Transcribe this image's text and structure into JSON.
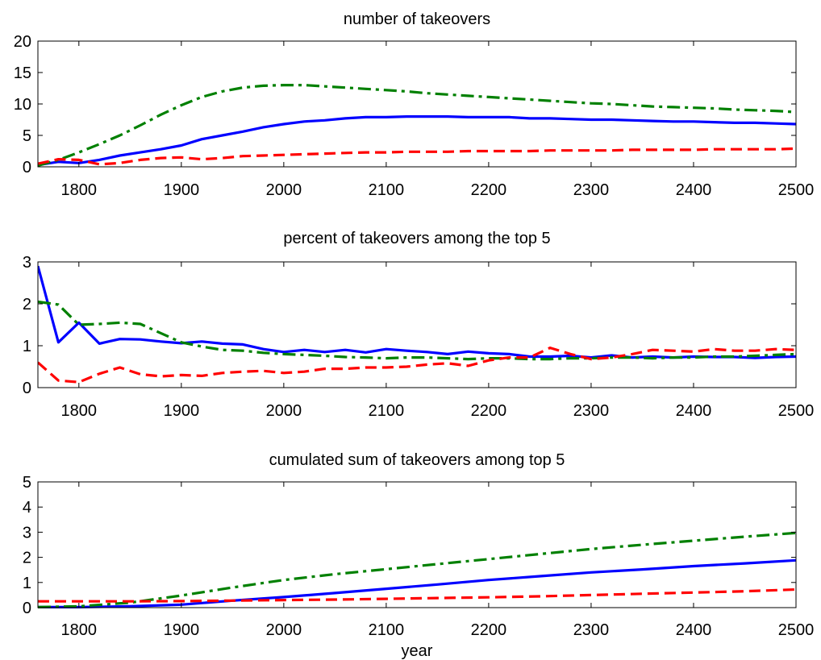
{
  "chart_data": [
    {
      "type": "line",
      "title": "number of takeovers",
      "xlabel": "",
      "ylabel": "",
      "xlim": [
        1760,
        2500
      ],
      "ylim": [
        0,
        20
      ],
      "xticks": [
        "1800",
        "1900",
        "2000",
        "2100",
        "2200",
        "2300",
        "2400",
        "2500"
      ],
      "yticks": [
        "0",
        "5",
        "10",
        "15",
        "20"
      ],
      "series": [
        {
          "color": "#0000ff",
          "style": "solid",
          "x": [
            1760,
            1780,
            1800,
            1820,
            1840,
            1860,
            1880,
            1900,
            1920,
            1940,
            1960,
            1980,
            2000,
            2020,
            2040,
            2060,
            2080,
            2100,
            2120,
            2140,
            2160,
            2180,
            2200,
            2220,
            2240,
            2260,
            2280,
            2300,
            2320,
            2340,
            2360,
            2380,
            2400,
            2420,
            2440,
            2460,
            2480,
            2500
          ],
          "y": [
            0.3,
            0.8,
            0.6,
            1.1,
            1.8,
            2.3,
            2.8,
            3.4,
            4.4,
            5.0,
            5.6,
            6.3,
            6.8,
            7.2,
            7.4,
            7.7,
            7.9,
            7.9,
            8.0,
            8.0,
            8.0,
            7.9,
            7.9,
            7.9,
            7.7,
            7.7,
            7.6,
            7.5,
            7.5,
            7.4,
            7.3,
            7.2,
            7.2,
            7.1,
            7.0,
            7.0,
            6.9,
            6.8
          ]
        },
        {
          "color": "#008000",
          "style": "dashdot",
          "x": [
            1760,
            1780,
            1800,
            1820,
            1840,
            1860,
            1880,
            1900,
            1920,
            1940,
            1960,
            1980,
            2000,
            2020,
            2040,
            2060,
            2080,
            2100,
            2120,
            2140,
            2160,
            2180,
            2200,
            2220,
            2240,
            2260,
            2280,
            2300,
            2320,
            2340,
            2360,
            2380,
            2400,
            2420,
            2440,
            2460,
            2480,
            2500
          ],
          "y": [
            0.2,
            1.1,
            2.3,
            3.6,
            5.0,
            6.6,
            8.3,
            9.8,
            11.1,
            12.0,
            12.6,
            12.9,
            13.0,
            13.0,
            12.8,
            12.6,
            12.4,
            12.2,
            12.0,
            11.7,
            11.5,
            11.3,
            11.1,
            10.9,
            10.7,
            10.5,
            10.3,
            10.1,
            10.0,
            9.8,
            9.6,
            9.5,
            9.4,
            9.3,
            9.1,
            9.0,
            8.9,
            8.7
          ]
        },
        {
          "color": "#ff0000",
          "style": "dashed",
          "x": [
            1760,
            1780,
            1800,
            1820,
            1840,
            1860,
            1880,
            1900,
            1920,
            1940,
            1960,
            1980,
            2000,
            2020,
            2040,
            2060,
            2080,
            2100,
            2120,
            2140,
            2160,
            2180,
            2200,
            2220,
            2240,
            2260,
            2280,
            2300,
            2320,
            2340,
            2360,
            2380,
            2400,
            2420,
            2440,
            2460,
            2480,
            2500
          ],
          "y": [
            0.5,
            1.2,
            1.1,
            0.4,
            0.6,
            1.1,
            1.4,
            1.5,
            1.2,
            1.4,
            1.7,
            1.8,
            1.9,
            2.0,
            2.1,
            2.2,
            2.3,
            2.3,
            2.4,
            2.4,
            2.4,
            2.5,
            2.5,
            2.5,
            2.5,
            2.6,
            2.6,
            2.6,
            2.6,
            2.7,
            2.7,
            2.7,
            2.7,
            2.8,
            2.8,
            2.8,
            2.8,
            2.9
          ]
        }
      ]
    },
    {
      "type": "line",
      "title": "percent of takeovers among the top 5",
      "xlabel": "",
      "ylabel": "",
      "xlim": [
        1760,
        2500
      ],
      "ylim": [
        0,
        3
      ],
      "xticks": [
        "1800",
        "1900",
        "2000",
        "2100",
        "2200",
        "2300",
        "2400",
        "2500"
      ],
      "yticks": [
        "0",
        "1",
        "2",
        "3"
      ],
      "series": [
        {
          "color": "#0000ff",
          "style": "solid",
          "x": [
            1760,
            1780,
            1800,
            1820,
            1840,
            1860,
            1880,
            1900,
            1920,
            1940,
            1960,
            1980,
            2000,
            2020,
            2040,
            2060,
            2080,
            2100,
            2120,
            2140,
            2160,
            2180,
            2200,
            2220,
            2240,
            2260,
            2280,
            2300,
            2320,
            2340,
            2360,
            2380,
            2400,
            2420,
            2440,
            2460,
            2480,
            2500
          ],
          "y": [
            2.9,
            1.08,
            1.55,
            1.05,
            1.16,
            1.15,
            1.1,
            1.06,
            1.1,
            1.05,
            1.03,
            0.92,
            0.85,
            0.9,
            0.85,
            0.9,
            0.84,
            0.92,
            0.88,
            0.85,
            0.8,
            0.86,
            0.82,
            0.8,
            0.74,
            0.74,
            0.76,
            0.72,
            0.77,
            0.72,
            0.74,
            0.72,
            0.74,
            0.73,
            0.73,
            0.71,
            0.73,
            0.74
          ]
        },
        {
          "color": "#008000",
          "style": "dashdot",
          "x": [
            1760,
            1780,
            1800,
            1820,
            1840,
            1860,
            1880,
            1900,
            1920,
            1940,
            1960,
            1980,
            2000,
            2020,
            2040,
            2060,
            2080,
            2100,
            2120,
            2140,
            2160,
            2180,
            2200,
            2220,
            2240,
            2260,
            2280,
            2300,
            2320,
            2340,
            2360,
            2380,
            2400,
            2420,
            2440,
            2460,
            2480,
            2500
          ],
          "y": [
            2.05,
            1.98,
            1.5,
            1.52,
            1.55,
            1.52,
            1.3,
            1.08,
            0.98,
            0.9,
            0.88,
            0.83,
            0.8,
            0.78,
            0.76,
            0.73,
            0.72,
            0.7,
            0.72,
            0.72,
            0.7,
            0.68,
            0.7,
            0.7,
            0.68,
            0.68,
            0.7,
            0.7,
            0.72,
            0.72,
            0.7,
            0.72,
            0.72,
            0.74,
            0.74,
            0.76,
            0.78,
            0.8
          ]
        },
        {
          "color": "#ff0000",
          "style": "dashed",
          "x": [
            1760,
            1780,
            1800,
            1820,
            1840,
            1860,
            1880,
            1900,
            1920,
            1940,
            1960,
            1980,
            2000,
            2020,
            2040,
            2060,
            2080,
            2100,
            2120,
            2140,
            2160,
            2180,
            2200,
            2220,
            2240,
            2260,
            2280,
            2300,
            2320,
            2340,
            2360,
            2380,
            2400,
            2420,
            2440,
            2460,
            2480,
            2500
          ],
          "y": [
            0.6,
            0.17,
            0.13,
            0.33,
            0.48,
            0.32,
            0.27,
            0.3,
            0.28,
            0.35,
            0.38,
            0.4,
            0.35,
            0.38,
            0.45,
            0.45,
            0.48,
            0.48,
            0.5,
            0.55,
            0.58,
            0.52,
            0.65,
            0.72,
            0.72,
            0.95,
            0.8,
            0.68,
            0.72,
            0.8,
            0.9,
            0.88,
            0.86,
            0.92,
            0.88,
            0.88,
            0.92,
            0.9
          ]
        }
      ]
    },
    {
      "type": "line",
      "title": "cumulated sum of takeovers among top 5",
      "xlabel": "year",
      "ylabel": "",
      "xlim": [
        1760,
        2500
      ],
      "ylim": [
        0,
        5
      ],
      "xticks": [
        "1800",
        "1900",
        "2000",
        "2100",
        "2200",
        "2300",
        "2400",
        "2500"
      ],
      "yticks": [
        "0",
        "1",
        "2",
        "3",
        "4",
        "5"
      ],
      "series": [
        {
          "color": "#0000ff",
          "style": "solid",
          "x": [
            1760,
            1800,
            1850,
            1900,
            1950,
            2000,
            2050,
            2100,
            2150,
            2200,
            2250,
            2300,
            2350,
            2400,
            2450,
            2500
          ],
          "y": [
            0.02,
            0.02,
            0.05,
            0.12,
            0.28,
            0.42,
            0.58,
            0.75,
            0.92,
            1.1,
            1.25,
            1.4,
            1.52,
            1.65,
            1.76,
            1.88
          ]
        },
        {
          "color": "#008000",
          "style": "dashdot",
          "x": [
            1760,
            1800,
            1850,
            1900,
            1950,
            2000,
            2050,
            2100,
            2150,
            2200,
            2250,
            2300,
            2350,
            2400,
            2450,
            2500
          ],
          "y": [
            0.02,
            0.05,
            0.2,
            0.48,
            0.8,
            1.1,
            1.33,
            1.53,
            1.73,
            1.93,
            2.13,
            2.33,
            2.5,
            2.66,
            2.82,
            2.97
          ]
        },
        {
          "color": "#ff0000",
          "style": "dashed",
          "x": [
            1760,
            1800,
            1850,
            1900,
            1950,
            2000,
            2050,
            2100,
            2150,
            2200,
            2250,
            2300,
            2350,
            2400,
            2450,
            2500
          ],
          "y": [
            0.25,
            0.25,
            0.25,
            0.26,
            0.28,
            0.3,
            0.32,
            0.35,
            0.38,
            0.41,
            0.45,
            0.5,
            0.55,
            0.6,
            0.65,
            0.72
          ]
        }
      ]
    }
  ]
}
